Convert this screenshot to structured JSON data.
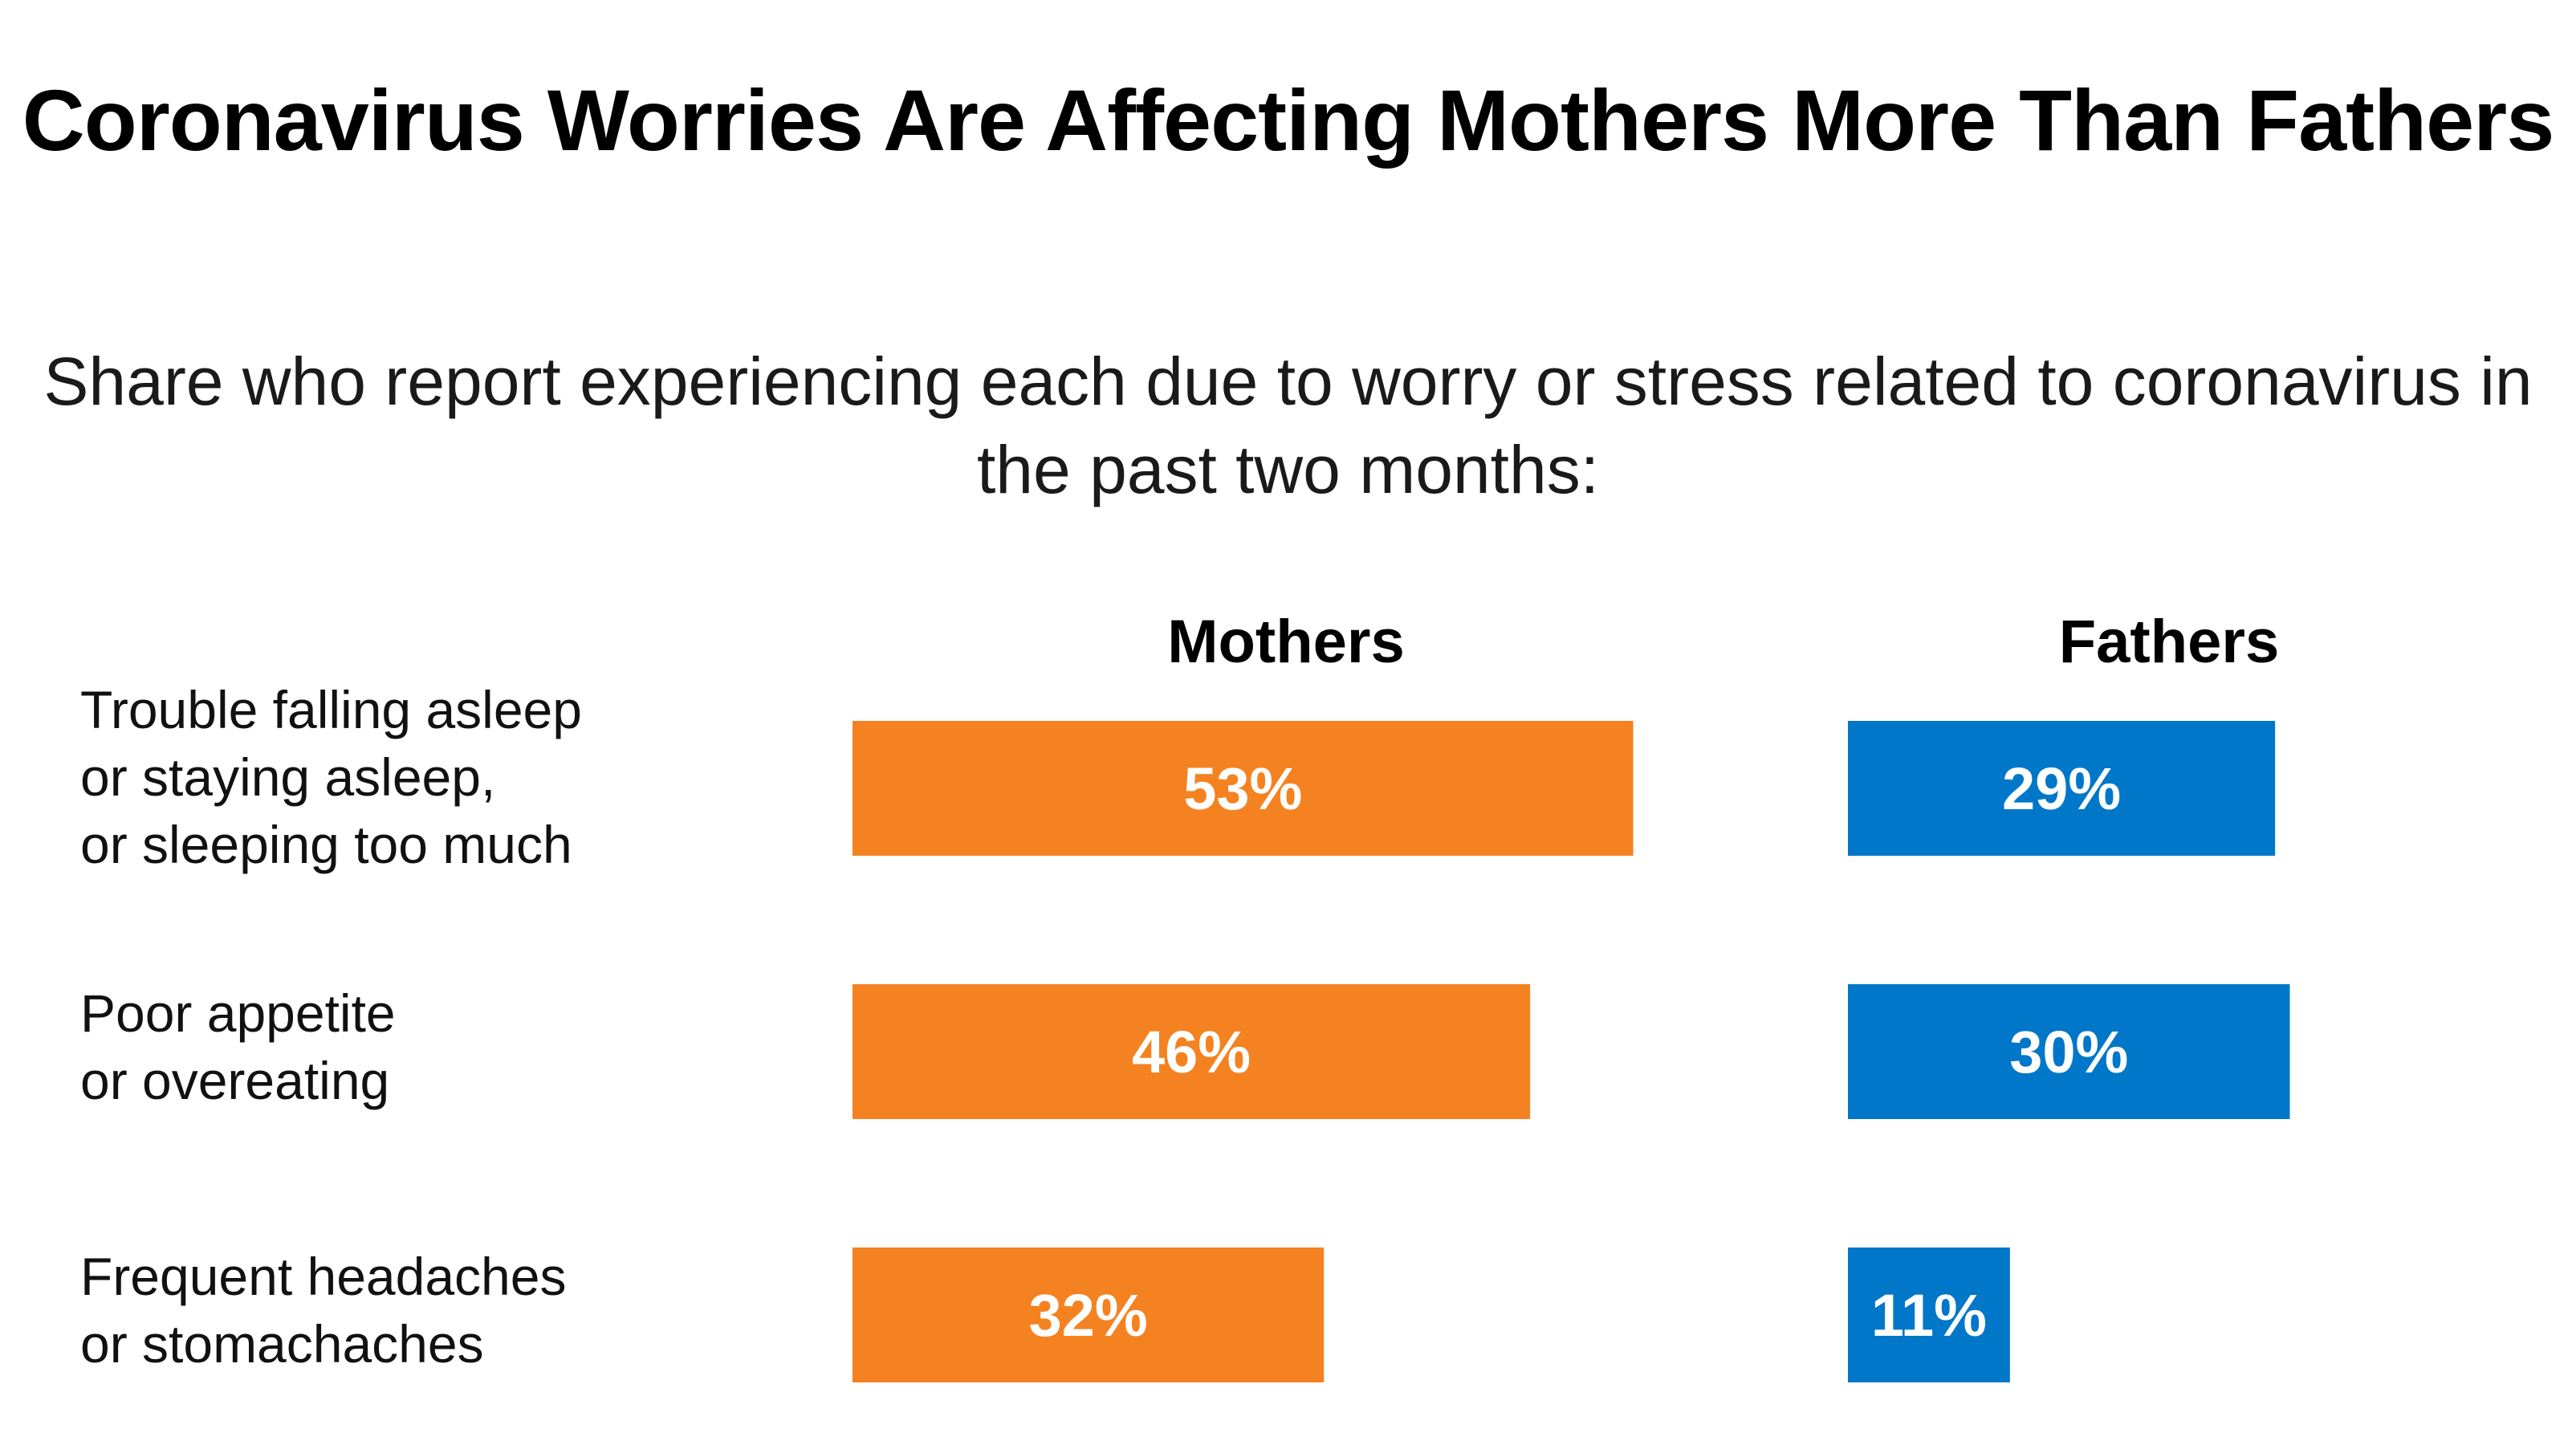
{
  "chart_data": {
    "type": "bar",
    "title": "Coronavirus Worries Are Affecting Mothers More Than Fathers",
    "subtitle": "Share who report experiencing each due to worry or stress related to coronavirus in the past two months:",
    "categories": [
      "Trouble falling asleep\nor staying asleep,\nor sleeping too much",
      "Poor appetite\nor overeating",
      "Frequent headaches\nor stomachaches"
    ],
    "series": [
      {
        "name": "Mothers",
        "color": "#F58220",
        "values": [
          53,
          46,
          32
        ],
        "labels": [
          "53%",
          "46%",
          "32%"
        ]
      },
      {
        "name": "Fathers",
        "color": "#0077C8",
        "values": [
          29,
          30,
          11
        ],
        "labels": [
          "29%",
          "30%",
          "11%"
        ]
      }
    ],
    "unit": "%",
    "orientation": "horizontal",
    "grid": false,
    "legend": "column headers"
  }
}
